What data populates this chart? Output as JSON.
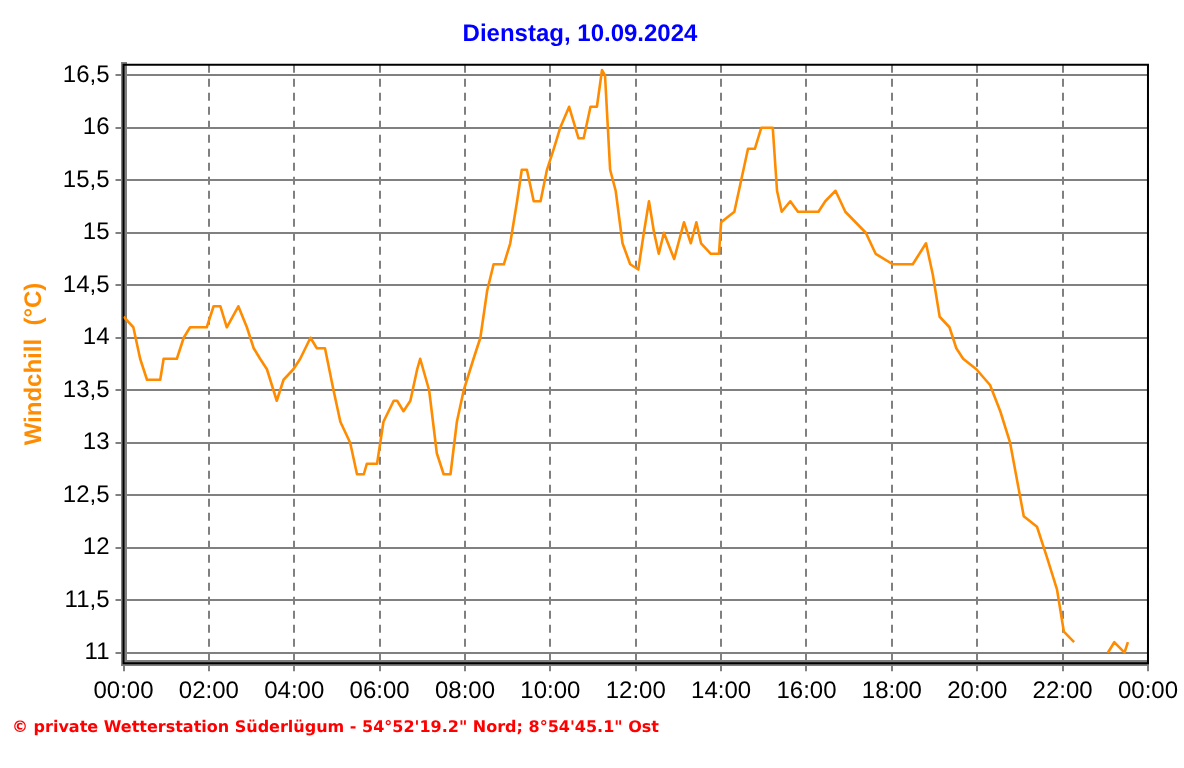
{
  "chart_data": {
    "type": "line",
    "title": "Dienstag, 10.09.2024",
    "ylabel": "Windchill  (°C)",
    "annotations": [
      "© private Wetterstation Süderlügum - 54°52'19.2\" Nord; 8°54'45.1\" Ost"
    ],
    "xlim": [
      0,
      24
    ],
    "ylim": [
      10.9,
      16.6
    ],
    "xticks": [
      {
        "value": 0,
        "label": "00:00"
      },
      {
        "value": 2,
        "label": "02:00"
      },
      {
        "value": 4,
        "label": "04:00"
      },
      {
        "value": 6,
        "label": "06:00"
      },
      {
        "value": 8,
        "label": "08:00"
      },
      {
        "value": 10,
        "label": "10:00"
      },
      {
        "value": 12,
        "label": "12:00"
      },
      {
        "value": 14,
        "label": "14:00"
      },
      {
        "value": 16,
        "label": "16:00"
      },
      {
        "value": 18,
        "label": "18:00"
      },
      {
        "value": 20,
        "label": "20:00"
      },
      {
        "value": 22,
        "label": "22:00"
      },
      {
        "value": 24,
        "label": "00:00"
      }
    ],
    "yticks": [
      11,
      {
        "value": 11.5,
        "label": "11,5"
      },
      12,
      {
        "value": 12.5,
        "label": "12,5"
      },
      13,
      {
        "value": 13.5,
        "label": "13,5"
      },
      14,
      {
        "value": 14.5,
        "label": "14,5"
      },
      15,
      {
        "value": 15.5,
        "label": "15,5"
      },
      16,
      {
        "value": 16.5,
        "label": "16,5"
      }
    ],
    "grid": true,
    "legend": false,
    "marker": "none",
    "line_style": "solid",
    "series": [
      {
        "color": "#ff8c00",
        "x": [
          0,
          0.23,
          0.39,
          0.55,
          0.86,
          0.94,
          1.25,
          1.41,
          1.56,
          1.95,
          2.11,
          2.27,
          2.42,
          2.69,
          2.89,
          3.05,
          3.2,
          3.36,
          3.59,
          3.75,
          3.98,
          4.14,
          4.38,
          4.53,
          4.72,
          4.92,
          5.08,
          5.31,
          5.47,
          5.63,
          5.7,
          5.94,
          6.09,
          6.33,
          6.41,
          6.56,
          6.72,
          6.88,
          6.95,
          7.16,
          7.34,
          7.5,
          7.66,
          7.81,
          7.97,
          8.2,
          8.36,
          8.52,
          8.67,
          8.91,
          9.06,
          9.22,
          9.33,
          9.45,
          9.61,
          9.77,
          9.92,
          10.08,
          10.23,
          10.44,
          10.66,
          10.78,
          10.94,
          11.09,
          11.21,
          11.28,
          11.4,
          11.53,
          11.69,
          11.87,
          12.06,
          12.19,
          12.31,
          12.43,
          12.54,
          12.66,
          12.9,
          13.13,
          13.29,
          13.42,
          13.53,
          13.76,
          13.95,
          14.0,
          14.31,
          14.47,
          14.63,
          14.79,
          14.94,
          15.21,
          15.31,
          15.42,
          15.62,
          15.8,
          16.28,
          16.44,
          16.68,
          16.91,
          17.15,
          17.39,
          17.62,
          18.02,
          18.49,
          18.8,
          18.96,
          19.12,
          19.35,
          19.51,
          19.67,
          19.98,
          20.3,
          20.54,
          20.77,
          20.93,
          21.09,
          21.4,
          21.64,
          21.87,
          22.03,
          22.27,
          22.43,
          23.06,
          23.21,
          23.45,
          23.53
        ],
        "values": [
          14.2,
          14.1,
          13.8,
          13.6,
          13.6,
          13.8,
          13.8,
          14.0,
          14.1,
          14.1,
          14.3,
          14.3,
          14.1,
          14.3,
          14.1,
          13.9,
          13.8,
          13.7,
          13.4,
          13.6,
          13.7,
          13.8,
          14.0,
          13.9,
          13.9,
          13.5,
          13.2,
          13.0,
          12.7,
          12.7,
          12.8,
          12.8,
          13.2,
          13.4,
          13.4,
          13.3,
          13.4,
          13.7,
          13.8,
          13.5,
          12.9,
          12.7,
          12.7,
          13.2,
          13.5,
          13.8,
          14.0,
          14.45,
          14.7,
          14.7,
          14.9,
          15.3,
          15.6,
          15.6,
          15.3,
          15.3,
          15.6,
          15.8,
          16.0,
          16.2,
          15.9,
          15.9,
          16.2,
          16.2,
          16.55,
          16.5,
          15.6,
          15.4,
          14.9,
          14.7,
          14.65,
          15.0,
          15.3,
          15.0,
          14.8,
          15.0,
          14.75,
          15.1,
          14.9,
          15.1,
          14.9,
          14.8,
          14.8,
          15.1,
          15.2,
          15.5,
          15.8,
          15.8,
          16.0,
          16.0,
          15.4,
          15.2,
          15.3,
          15.2,
          15.2,
          15.3,
          15.4,
          15.2,
          15.1,
          15.0,
          14.8,
          14.7,
          14.7,
          14.9,
          14.6,
          14.2,
          14.1,
          13.9,
          13.8,
          13.7,
          13.55,
          13.3,
          13.0,
          12.65,
          12.3,
          12.2,
          11.9,
          11.6,
          11.2,
          11.1,
          null,
          11.0,
          11.1,
          11.0,
          11.1
        ]
      }
    ]
  }
}
